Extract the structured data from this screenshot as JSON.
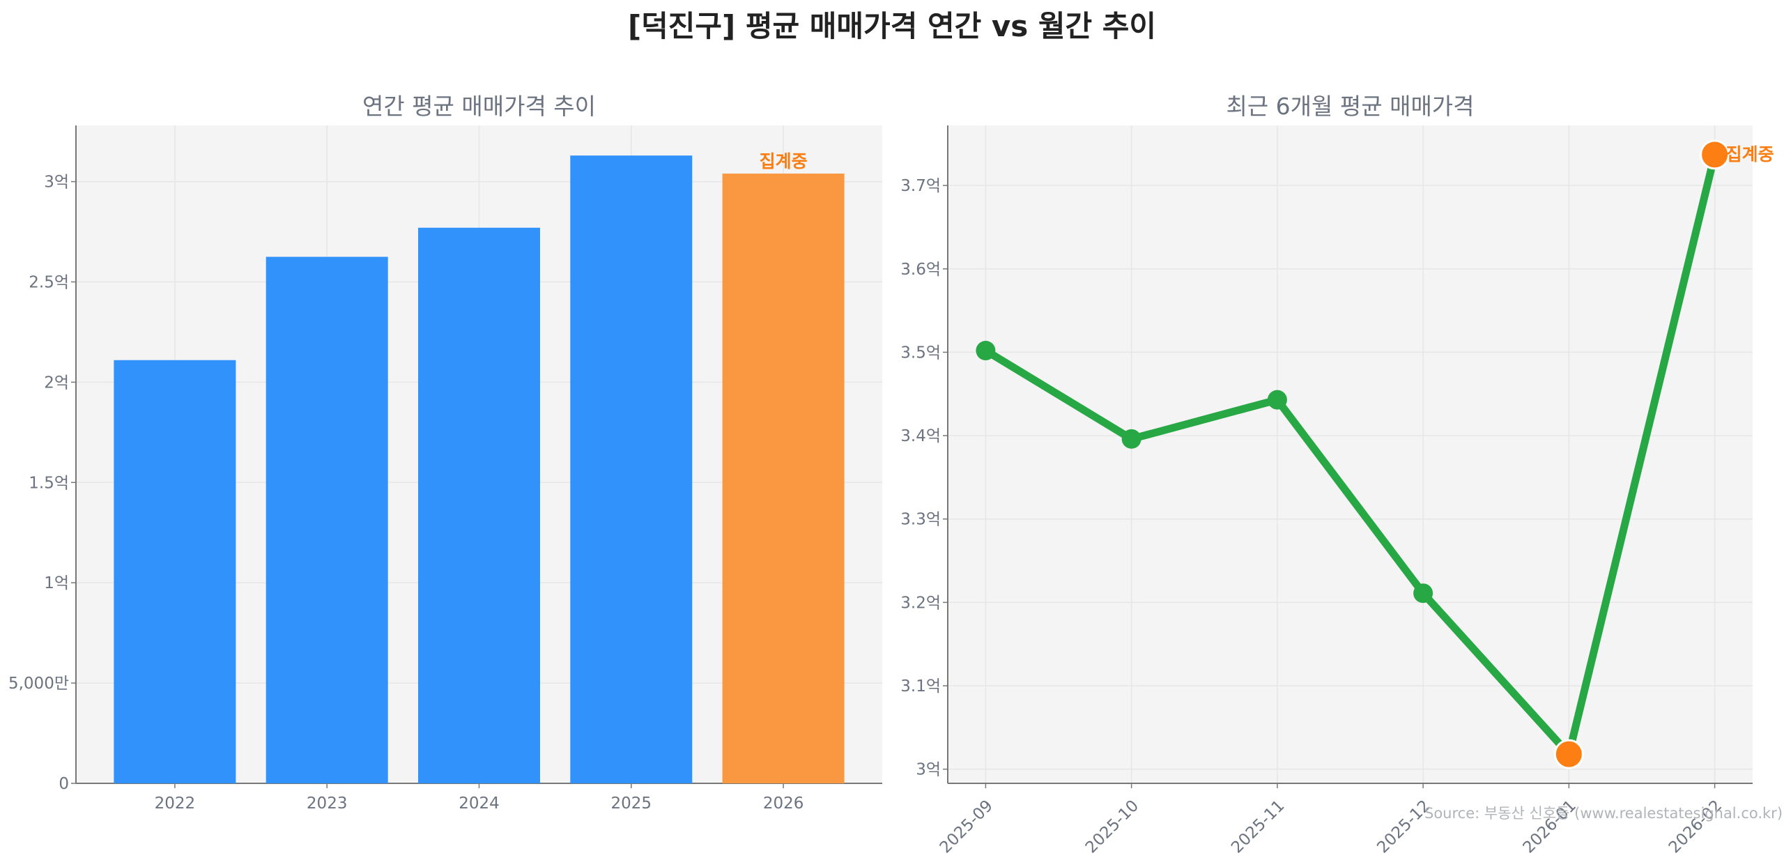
{
  "title": "[덕진구] 평균 매매가격 연간 vs 월간 추이",
  "source": "Source: 부동산 신호등 (www.realestatesignal.co.kr)",
  "chart_data": [
    {
      "type": "bar",
      "title": "연간 평균 매매가격 추이",
      "categories": [
        "2022",
        "2023",
        "2024",
        "2025",
        "2026"
      ],
      "values": [
        2.11,
        2.625,
        2.77,
        3.13,
        3.04
      ],
      "unit": "억",
      "colors": [
        "#3192fb",
        "#3192fb",
        "#3192fb",
        "#3192fb",
        "#f99841"
      ],
      "annotations": [
        {
          "category": "2026",
          "text": "집계중",
          "color": "#fa7d12"
        }
      ],
      "yticks": [
        0,
        0.5,
        1,
        1.5,
        2,
        2.5,
        3
      ],
      "ytick_labels": [
        "0",
        "5,000만",
        "1억",
        "1.5억",
        "2억",
        "2.5억",
        "3억"
      ],
      "ylim": [
        0,
        3.28
      ],
      "grid": true,
      "background": "#f4f4f4"
    },
    {
      "type": "line",
      "title": "최근 6개월 평균 매매가격",
      "categories": [
        "2025-09",
        "2025-10",
        "2025-11",
        "2025-12",
        "2026-01",
        "2026-02"
      ],
      "values": [
        3.502,
        3.396,
        3.443,
        3.211,
        3.018,
        3.737
      ],
      "unit": "억",
      "line_color": "#28a745",
      "highlight_points": [
        {
          "category": "2026-01",
          "color": "#fd7f14"
        },
        {
          "category": "2026-02",
          "color": "#fd7f14"
        }
      ],
      "annotations": [
        {
          "category": "2026-02",
          "text": "집계중",
          "color": "#fa7d12"
        }
      ],
      "yticks": [
        3.0,
        3.1,
        3.2,
        3.3,
        3.4,
        3.5,
        3.6,
        3.7
      ],
      "ytick_labels": [
        "3억",
        "3.1억",
        "3.2억",
        "3.3억",
        "3.4억",
        "3.5억",
        "3.6억",
        "3.7억"
      ],
      "ylim": [
        2.983,
        3.772
      ],
      "grid": true,
      "background": "#f4f4f4"
    }
  ]
}
